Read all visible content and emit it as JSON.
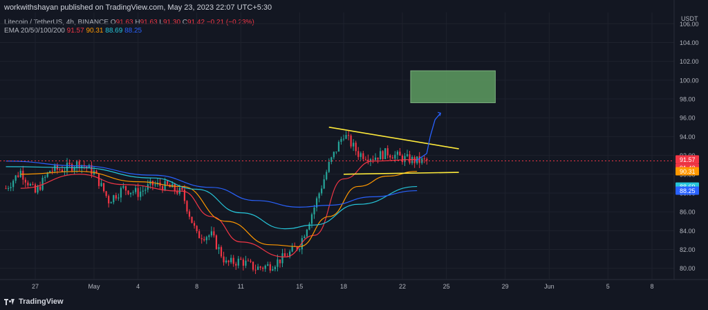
{
  "header": {
    "published": "workwithshayan published on TradingView.com, May 23, 2023 22:07 UTC+5:30",
    "symbol": "Litecoin / TetherUS, 4h, BINANCE",
    "ohlc": [
      {
        "k": "O",
        "v": "91.63"
      },
      {
        "k": "H",
        "v": "91.63"
      },
      {
        "k": "L",
        "v": "91.30"
      },
      {
        "k": "C",
        "v": "91.42"
      }
    ],
    "change": "−0.21 (−0.23%)",
    "ema_label": "EMA 20/50/100/200",
    "ema_values": [
      {
        "v": "91.57",
        "color": "#f23645"
      },
      {
        "v": "90.31",
        "color": "#ff9800"
      },
      {
        "v": "88.69",
        "color": "#26c6da"
      },
      {
        "v": "88.25",
        "color": "#2962ff"
      }
    ]
  },
  "footer": {
    "brand": "TradingView"
  },
  "colors": {
    "up": "#26a69a",
    "down": "#f23645",
    "bg": "#131722",
    "grid": "#1e222d",
    "ema20": "#f23645",
    "ema50": "#ff9800",
    "ema100": "#26c6da",
    "ema200": "#2962ff",
    "trendline": "#ffeb3b",
    "target_zone": "#5e9c60",
    "projection": "#2962ff"
  },
  "chart_data": {
    "type": "candlestick",
    "currency": "USDT",
    "y_ticks": [
      "106.00",
      "104.00",
      "102.00",
      "100.00",
      "98.00",
      "96.00",
      "94.00",
      "92.00",
      "90.00",
      "88.00",
      "86.00",
      "84.00",
      "82.00",
      "80.00"
    ],
    "ylim": [
      78.8,
      107.2
    ],
    "x_ticks": [
      "27",
      "May",
      "4",
      "8",
      "11",
      "15",
      "18",
      "22",
      "25",
      "29",
      "Jun",
      "5",
      "8"
    ],
    "x_dates": [
      "2023-04-27",
      "2023-05-01",
      "2023-05-04",
      "2023-05-08",
      "2023-05-11",
      "2023-05-15",
      "2023-05-18",
      "2023-05-22",
      "2023-05-25",
      "2023-05-29",
      "2023-06-01",
      "2023-06-05",
      "2023-06-08"
    ],
    "price_labels": [
      {
        "text": "91.57",
        "value": 91.57,
        "bg": "#f23645"
      },
      {
        "text": "91.42",
        "value": 91.42,
        "bg": "#f23645"
      },
      {
        "text": "90.31",
        "value": 90.31,
        "bg": "#ff9800"
      },
      {
        "text": "88.69",
        "value": 88.69,
        "bg": "#26c6da"
      },
      {
        "text": "88.25",
        "value": 88.25,
        "bg": "#2962ff"
      }
    ],
    "close_line": 91.42,
    "anchors": [
      [
        "2023-04-25",
        88.5
      ],
      [
        "2023-04-26",
        90.3
      ],
      [
        "2023-04-27",
        88.0
      ],
      [
        "2023-04-28",
        90.4
      ],
      [
        "2023-04-29",
        90.6
      ],
      [
        "2023-04-30",
        91.2
      ],
      [
        "2023-05-01",
        90.2
      ],
      [
        "2023-05-02",
        87.2
      ],
      [
        "2023-05-03",
        88.5
      ],
      [
        "2023-05-04",
        88.0
      ],
      [
        "2023-05-05",
        88.9
      ],
      [
        "2023-05-06",
        88.7
      ],
      [
        "2023-05-07",
        88.0
      ],
      [
        "2023-05-08",
        83.5
      ],
      [
        "2023-05-09",
        83.5
      ],
      [
        "2023-05-10",
        80.5
      ],
      [
        "2023-05-11",
        80.8
      ],
      [
        "2023-05-12",
        80.0
      ],
      [
        "2023-05-13",
        80.3
      ],
      [
        "2023-05-14",
        81.2
      ],
      [
        "2023-05-15",
        82.5
      ],
      [
        "2023-05-16",
        86.5
      ],
      [
        "2023-05-17",
        91.0
      ],
      [
        "2023-05-18",
        94.3
      ],
      [
        "2023-05-19",
        92.2
      ],
      [
        "2023-05-20",
        91.8
      ],
      [
        "2023-05-21",
        92.3
      ],
      [
        "2023-05-22",
        91.7
      ],
      [
        "2023-05-23",
        91.4
      ]
    ],
    "ema_series": [
      {
        "name": "EMA 20",
        "color": "#f23645",
        "points": [
          [
            "2023-04-26",
            88.5
          ],
          [
            "2023-04-30",
            90.0
          ],
          [
            "2023-05-03",
            88.9
          ],
          [
            "2023-05-07",
            88.2
          ],
          [
            "2023-05-09",
            85.5
          ],
          [
            "2023-05-11",
            82.8
          ],
          [
            "2023-05-14",
            81.2
          ],
          [
            "2023-05-16",
            83.5
          ],
          [
            "2023-05-18",
            89.5
          ],
          [
            "2023-05-20",
            91.4
          ],
          [
            "2023-05-23",
            91.57
          ]
        ]
      },
      {
        "name": "EMA 50",
        "color": "#ff9800",
        "points": [
          [
            "2023-04-26",
            90.0
          ],
          [
            "2023-04-30",
            90.3
          ],
          [
            "2023-05-04",
            89.2
          ],
          [
            "2023-05-07",
            88.7
          ],
          [
            "2023-05-10",
            85.0
          ],
          [
            "2023-05-13",
            82.5
          ],
          [
            "2023-05-15",
            82.3
          ],
          [
            "2023-05-17",
            85.5
          ],
          [
            "2023-05-19",
            88.7
          ],
          [
            "2023-05-21",
            89.8
          ],
          [
            "2023-05-23",
            90.31
          ]
        ]
      },
      {
        "name": "EMA 100",
        "color": "#26c6da",
        "points": [
          [
            "2023-04-25",
            90.8
          ],
          [
            "2023-04-30",
            90.7
          ],
          [
            "2023-05-05",
            89.6
          ],
          [
            "2023-05-08",
            88.4
          ],
          [
            "2023-05-11",
            85.9
          ],
          [
            "2023-05-14",
            84.2
          ],
          [
            "2023-05-16",
            84.6
          ],
          [
            "2023-05-19",
            86.8
          ],
          [
            "2023-05-23",
            88.69
          ]
        ]
      },
      {
        "name": "EMA 200",
        "color": "#2962ff",
        "points": [
          [
            "2023-04-25",
            91.4
          ],
          [
            "2023-04-30",
            90.9
          ],
          [
            "2023-05-05",
            89.9
          ],
          [
            "2023-05-09",
            88.6
          ],
          [
            "2023-05-12",
            87.2
          ],
          [
            "2023-05-15",
            86.5
          ],
          [
            "2023-05-17",
            86.7
          ],
          [
            "2023-05-20",
            87.6
          ],
          [
            "2023-05-23",
            88.25
          ]
        ]
      }
    ],
    "drawings": {
      "resistance_line": [
        [
          "2023-05-17",
          95.0
        ],
        [
          "2023-05-25",
          92.7
        ]
      ],
      "support_line": [
        [
          "2023-05-18",
          90.0
        ],
        [
          "2023-05-25",
          90.2
        ]
      ],
      "target_zone": {
        "x0": "2023-05-22",
        "x1": "2023-05-28",
        "y0": 97.6,
        "y1": 101.0
      },
      "projection_path": [
        [
          "2023-05-23",
          91.4
        ],
        [
          "2023-05-24",
          92.2
        ],
        [
          "2023-05-24",
          94.0
        ],
        [
          "2023-05-24",
          95.8
        ],
        [
          "2023-05-24",
          96.5
        ]
      ]
    }
  }
}
